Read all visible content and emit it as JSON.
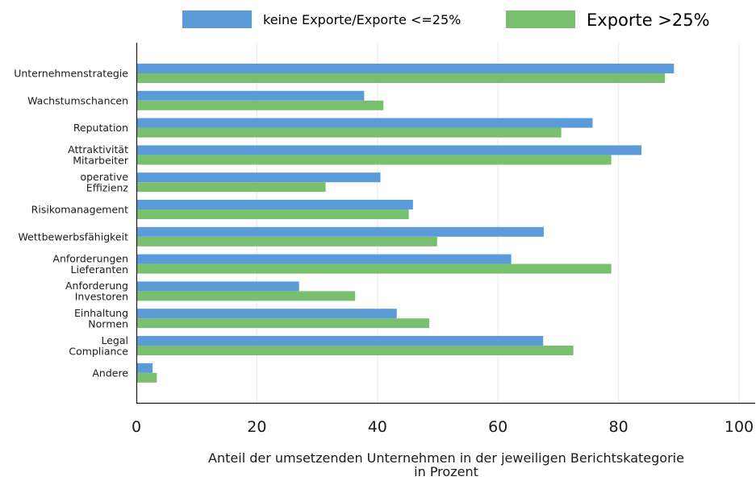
{
  "chart_data": {
    "type": "bar",
    "orientation": "horizontal",
    "categories": [
      [
        "Unternehmenstrategie"
      ],
      [
        "Wachstumschancen"
      ],
      [
        "Reputation"
      ],
      [
        "Attraktivität",
        "Mitarbeiter"
      ],
      [
        "operative",
        "Effizienz"
      ],
      [
        "Risikomanagement"
      ],
      [
        "Wettbewerbsfähigkeit"
      ],
      [
        "Anforderungen",
        "Lieferanten"
      ],
      [
        "Anforderung",
        "Investoren"
      ],
      [
        "Einhaltung",
        "Normen"
      ],
      [
        "Legal",
        "Compliance"
      ],
      [
        "Andere"
      ]
    ],
    "series": [
      {
        "name": "keine Exporte/Exporte <=25%",
        "color": "#5a9bd8",
        "values": [
          89.2,
          37.8,
          75.7,
          83.8,
          40.5,
          45.9,
          67.6,
          62.2,
          27.0,
          43.2,
          67.5,
          2.7
        ]
      },
      {
        "name": "Exporte >25%",
        "color": "#78bf6e",
        "values": [
          87.7,
          41.0,
          70.5,
          78.8,
          31.4,
          45.2,
          49.9,
          78.8,
          36.3,
          48.6,
          72.5,
          3.4
        ]
      }
    ],
    "xlim": [
      0,
      100
    ],
    "xticks": [
      "0",
      "20",
      "40",
      "60",
      "80",
      "100"
    ],
    "xlabel": [
      "Anteil der umsetzenden Unternehmen in der jeweiligen Berichtskategorie",
      "in Prozent"
    ],
    "ylabel": "",
    "title": "",
    "grid": "vertical",
    "legend_position": "top"
  }
}
